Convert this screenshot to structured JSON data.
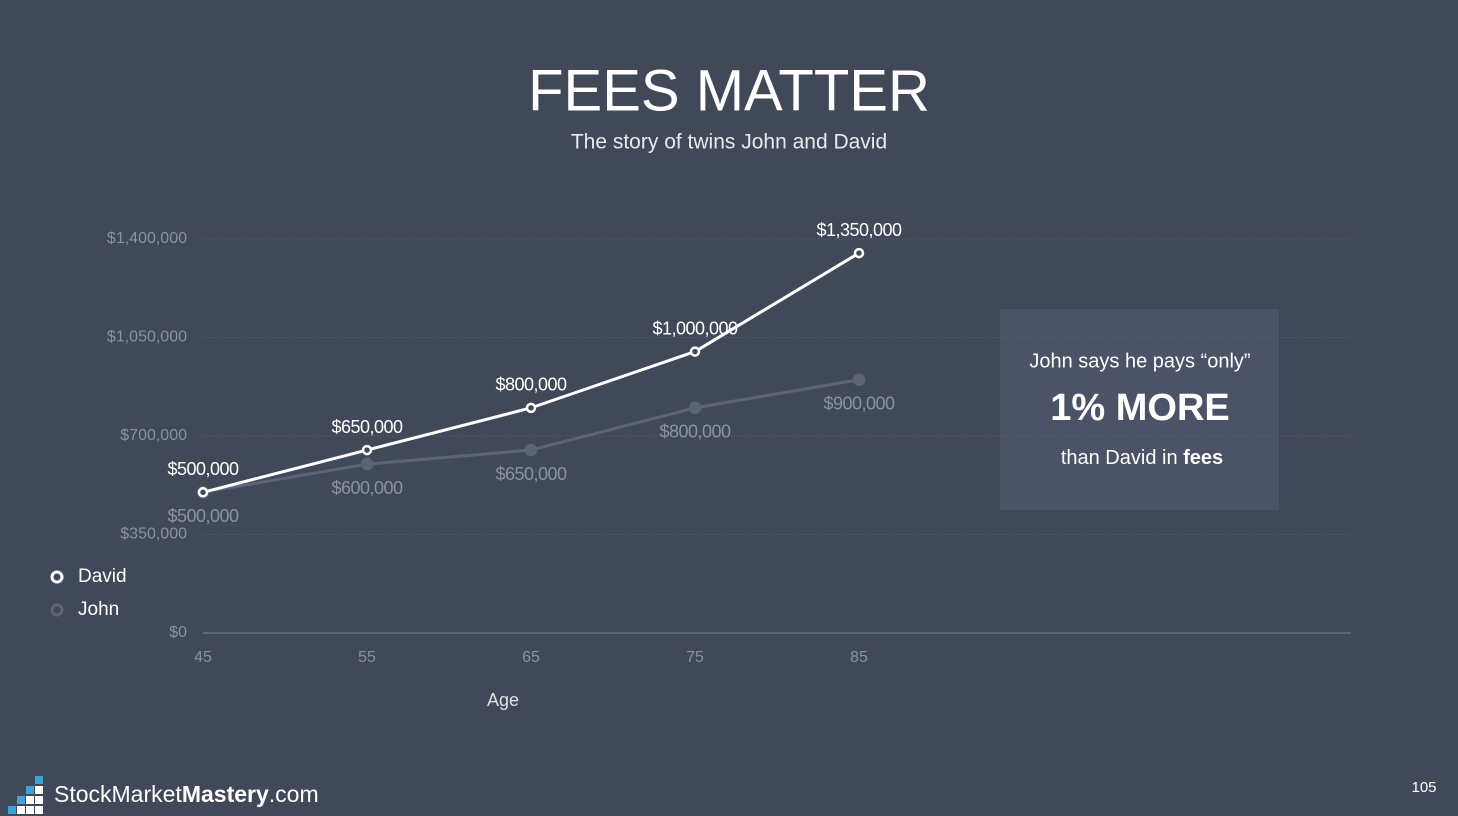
{
  "chart_data": {
    "type": "line",
    "title": "FEES MATTER",
    "subtitle": "The story of twins John and David",
    "x_label": "Age",
    "x": [
      45,
      55,
      65,
      75,
      85
    ],
    "xlim": [
      45,
      115
    ],
    "xticks": [
      45,
      55,
      65,
      75,
      85
    ],
    "ylim": [
      0,
      1400000
    ],
    "yticks": [
      {
        "value": 0,
        "label": "$0"
      },
      {
        "value": 350000,
        "label": "$350,000"
      },
      {
        "value": 700000,
        "label": "$700,000"
      },
      {
        "value": 1050000,
        "label": "$1,050,000"
      },
      {
        "value": 1400000,
        "label": "$1,400,000"
      }
    ],
    "grid": true,
    "legend": "lower left",
    "series": [
      {
        "name": "David",
        "color": "#ffffff",
        "values": [
          500000,
          650000,
          800000,
          1000000,
          1350000
        ],
        "value_labels": [
          "$500,000",
          "$650,000",
          "$800,000",
          "$1,000,000",
          "$1,350,000"
        ]
      },
      {
        "name": "John",
        "color": "#5d6478",
        "values": [
          500000,
          600000,
          650000,
          800000,
          900000
        ],
        "value_labels": [
          "$500,000",
          "$600,000",
          "$650,000",
          "$800,000",
          "$900,000"
        ]
      }
    ]
  },
  "callout": {
    "line1": "John says he pays “only”",
    "headline": "1% MORE",
    "line3_prefix": "than David in ",
    "line3_bold": "fees"
  },
  "footer": {
    "logo_prefix": "StockMarket",
    "logo_bold": "Mastery",
    "logo_suffix": ".com",
    "page_number": "105"
  }
}
